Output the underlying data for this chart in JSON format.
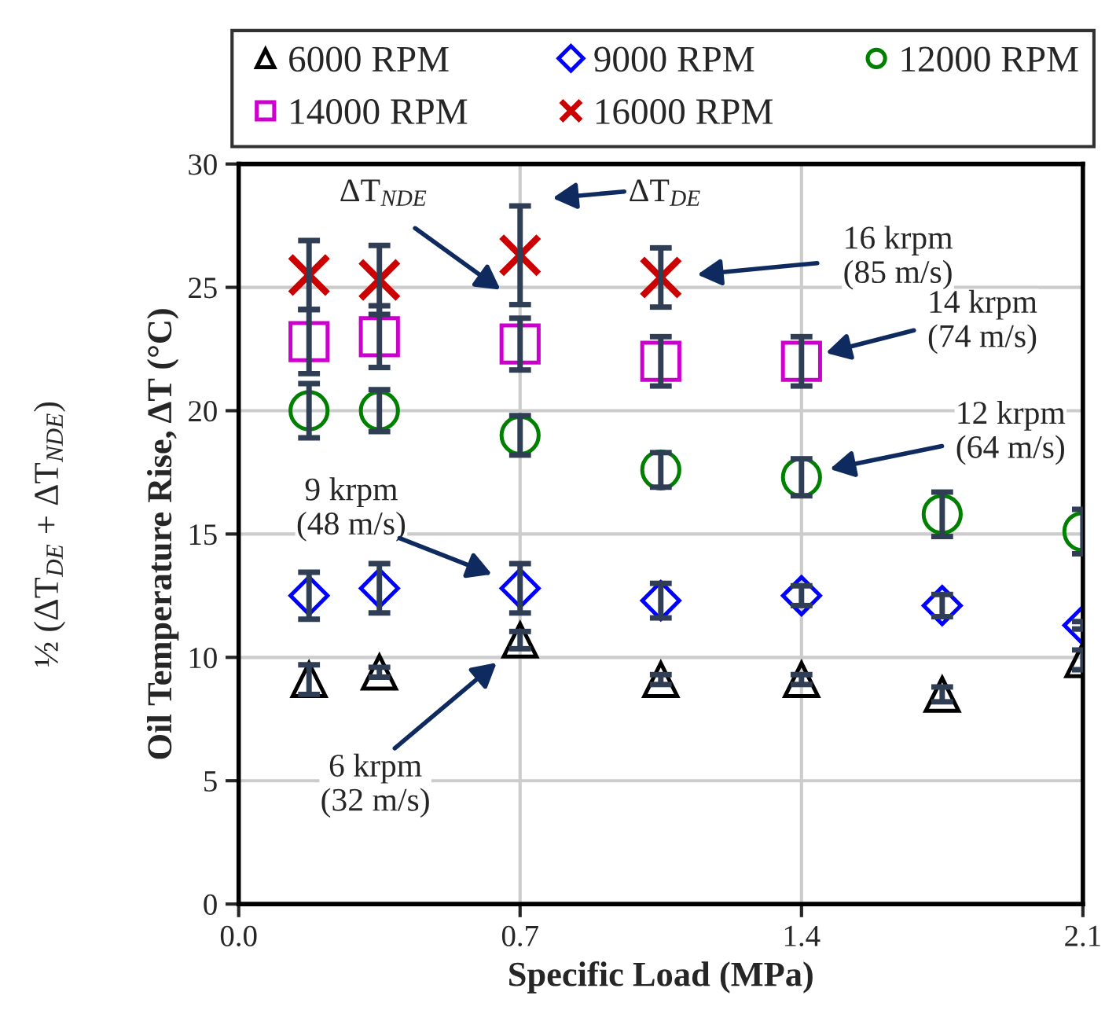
{
  "chart_data": {
    "type": "scatter",
    "xlabel": "Specific Load (MPa)",
    "ylabel": "Oil Temperature Rise, ΔT (°C)",
    "x": [
      0.175,
      0.35,
      0.7,
      1.05,
      1.4,
      1.75,
      2.1
    ],
    "xlim": [
      0,
      2.1
    ],
    "xticks": [
      {
        "value": 0,
        "label": "0.0"
      },
      0.7,
      1.4,
      2.1
    ],
    "ylim": [
      0,
      30
    ],
    "yticks": [
      0,
      5,
      10,
      15,
      20,
      25,
      30
    ],
    "grid": true,
    "legend": "top",
    "series": [
      {
        "name": "6000 RPM",
        "color": "#000000",
        "marker": "triangle",
        "values": [
          9.1,
          9.4,
          10.7,
          9.1,
          9.1,
          8.5,
          9.9
        ],
        "errors": [
          0.6,
          0.2,
          0.35,
          0.2,
          0.2,
          0.3,
          0.4
        ]
      },
      {
        "name": "9000 RPM",
        "color": "#0000ff",
        "marker": "diamond",
        "values": [
          12.5,
          12.8,
          12.8,
          12.3,
          12.5,
          12.1,
          11.3
        ],
        "errors": [
          0.95,
          1.0,
          1.0,
          0.7,
          0.4,
          0.45,
          0.15
        ]
      },
      {
        "name": "12000 RPM",
        "color": "#008000",
        "marker": "circle",
        "values": [
          20.0,
          20.0,
          19.0,
          17.6,
          17.3,
          15.8,
          15.1
        ],
        "errors": [
          1.1,
          0.85,
          0.8,
          0.7,
          0.75,
          0.9,
          0.9
        ]
      },
      {
        "name": "14000 RPM",
        "color": "#cc00cc",
        "marker": "square",
        "values": [
          22.8,
          23.0,
          22.7,
          22.0,
          22.0,
          null,
          null
        ],
        "errors": [
          1.3,
          1.25,
          1.05,
          1.0,
          1.0,
          null,
          null
        ]
      },
      {
        "name": "16000 RPM",
        "color": "#cc0000",
        "marker": "cross",
        "values": [
          25.5,
          25.3,
          26.3,
          25.4,
          null,
          null,
          null
        ],
        "errors": [
          1.4,
          1.4,
          2.0,
          1.2,
          null,
          null,
          null
        ]
      }
    ],
    "annotations": [
      "½ (ΔT$_{DE}$ + ΔT$_{NDE}$)",
      "ΔT$_{NDE}$",
      "ΔT$_{DE}$",
      "16 krpm\n(85 m/s)",
      "14 krpm\n(74 m/s)",
      "12 krpm\n(64 m/s)",
      "9 krpm\n(48 m/s)",
      "6 krpm\n(32 m/s)"
    ]
  }
}
